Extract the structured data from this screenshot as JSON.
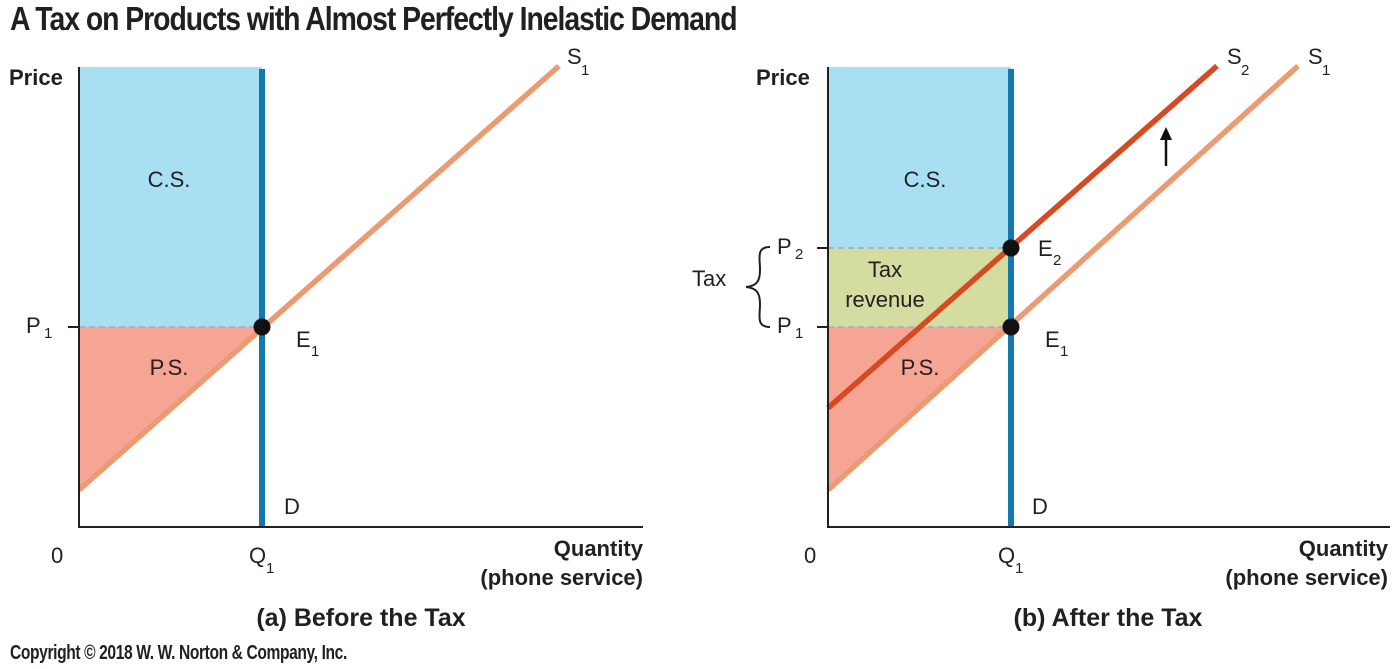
{
  "title": "A Tax on Products with Almost Perfectly Inelastic Demand",
  "copyright": "Copyright © 2018 W. W. Norton & Company, Inc.",
  "colors": {
    "consumer_surplus": "#a8dff3",
    "producer_surplus": "#f6a594",
    "tax_revenue": "#d5dca0",
    "supply_original": "#eb9b72",
    "supply_shifted": "#d54a20",
    "demand": "#1378ab",
    "axis": "#231f20",
    "dashed": "#9ab8c8"
  },
  "panels": [
    {
      "caption": "(a) Before the Tax",
      "y_axis_label": "Price",
      "x_axis_label_line1": "Quantity",
      "x_axis_label_line2": "(phone service)",
      "origin_label": "0",
      "q_label": "Q",
      "q_sub": "1",
      "p1_label": "P",
      "p1_sub": "1",
      "cs_label": "C.S.",
      "ps_label": "P.S.",
      "demand_label": "D",
      "supply1_label": "S",
      "supply1_sub": "1",
      "eq1_label": "E",
      "eq1_sub": "1"
    },
    {
      "caption": "(b) After the Tax",
      "y_axis_label": "Price",
      "x_axis_label_line1": "Quantity",
      "x_axis_label_line2": "(phone service)",
      "origin_label": "0",
      "q_label": "Q",
      "q_sub": "1",
      "p1_label": "P",
      "p1_sub": "1",
      "p2_label": "P",
      "p2_sub": "2",
      "tax_label": "Tax",
      "tax_revenue_line1": "Tax",
      "tax_revenue_line2": "revenue",
      "cs_label": "C.S.",
      "ps_label": "P.S.",
      "demand_label": "D",
      "supply1_label": "S",
      "supply1_sub": "1",
      "supply2_label": "S",
      "supply2_sub": "2",
      "eq1_label": "E",
      "eq1_sub": "1",
      "eq2_label": "E",
      "eq2_sub": "2"
    }
  ]
}
